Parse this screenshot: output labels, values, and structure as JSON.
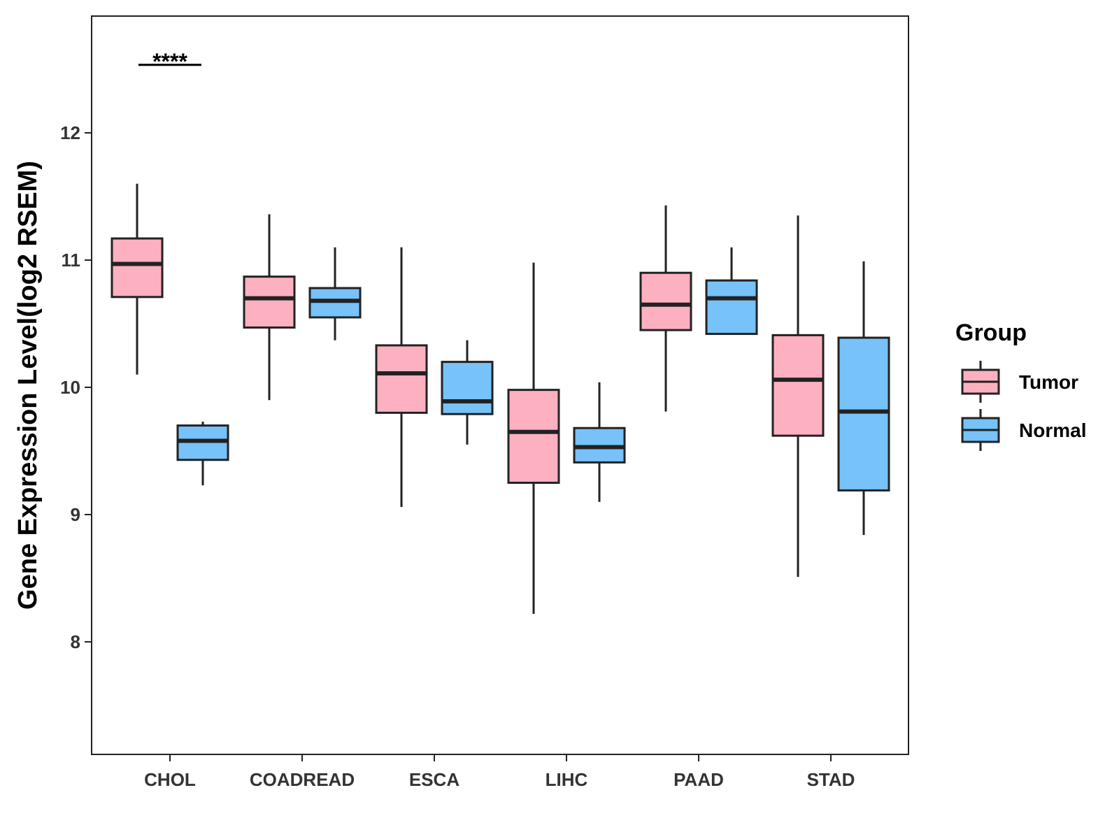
{
  "chart_data": {
    "type": "boxplot",
    "title": "",
    "xlabel": "",
    "ylabel": "Gene Expression Level(log2 RSEM)",
    "ylim": [
      7.1,
      12.9
    ],
    "yticks": [
      8,
      9,
      10,
      11,
      12
    ],
    "categories": [
      "CHOL",
      "COADREAD",
      "ESCA",
      "LIHC",
      "PAAD",
      "STAD"
    ],
    "legend": {
      "title": "Group",
      "position": "right",
      "entries": [
        {
          "name": "Tumor",
          "color": "#FDB0C0"
        },
        {
          "name": "Normal",
          "color": "#77C2F9"
        }
      ]
    },
    "series": [
      {
        "name": "Tumor",
        "color": "#FDB0C0",
        "boxes": [
          {
            "category": "CHOL",
            "min": 10.1,
            "q1": 10.71,
            "median": 10.97,
            "q3": 11.17,
            "max": 11.6
          },
          {
            "category": "COADREAD",
            "min": 9.9,
            "q1": 10.47,
            "median": 10.7,
            "q3": 10.87,
            "max": 11.36
          },
          {
            "category": "ESCA",
            "min": 9.06,
            "q1": 9.8,
            "median": 10.11,
            "q3": 10.33,
            "max": 11.1
          },
          {
            "category": "LIHC",
            "min": 8.22,
            "q1": 9.25,
            "median": 9.65,
            "q3": 9.98,
            "max": 10.98
          },
          {
            "category": "PAAD",
            "min": 9.81,
            "q1": 10.45,
            "median": 10.65,
            "q3": 10.9,
            "max": 11.43
          },
          {
            "category": "STAD",
            "min": 8.51,
            "q1": 9.62,
            "median": 10.06,
            "q3": 10.41,
            "max": 11.35
          }
        ]
      },
      {
        "name": "Normal",
        "color": "#77C2F9",
        "boxes": [
          {
            "category": "CHOL",
            "min": 9.23,
            "q1": 9.43,
            "median": 9.58,
            "q3": 9.7,
            "max": 9.73
          },
          {
            "category": "COADREAD",
            "min": 10.37,
            "q1": 10.55,
            "median": 10.68,
            "q3": 10.78,
            "max": 11.1
          },
          {
            "category": "ESCA",
            "min": 9.55,
            "q1": 9.79,
            "median": 9.89,
            "q3": 10.2,
            "max": 10.37
          },
          {
            "category": "LIHC",
            "min": 9.1,
            "q1": 9.41,
            "median": 9.53,
            "q3": 9.68,
            "max": 10.04
          },
          {
            "category": "PAAD",
            "min": 10.42,
            "q1": 10.42,
            "median": 10.7,
            "q3": 10.84,
            "max": 11.1
          },
          {
            "category": "STAD",
            "min": 8.84,
            "q1": 9.19,
            "median": 9.81,
            "q3": 10.39,
            "max": 10.99
          }
        ]
      }
    ],
    "annotations": [
      {
        "category": "CHOL",
        "text": "****",
        "y": 12.6
      }
    ],
    "grid": false
  }
}
